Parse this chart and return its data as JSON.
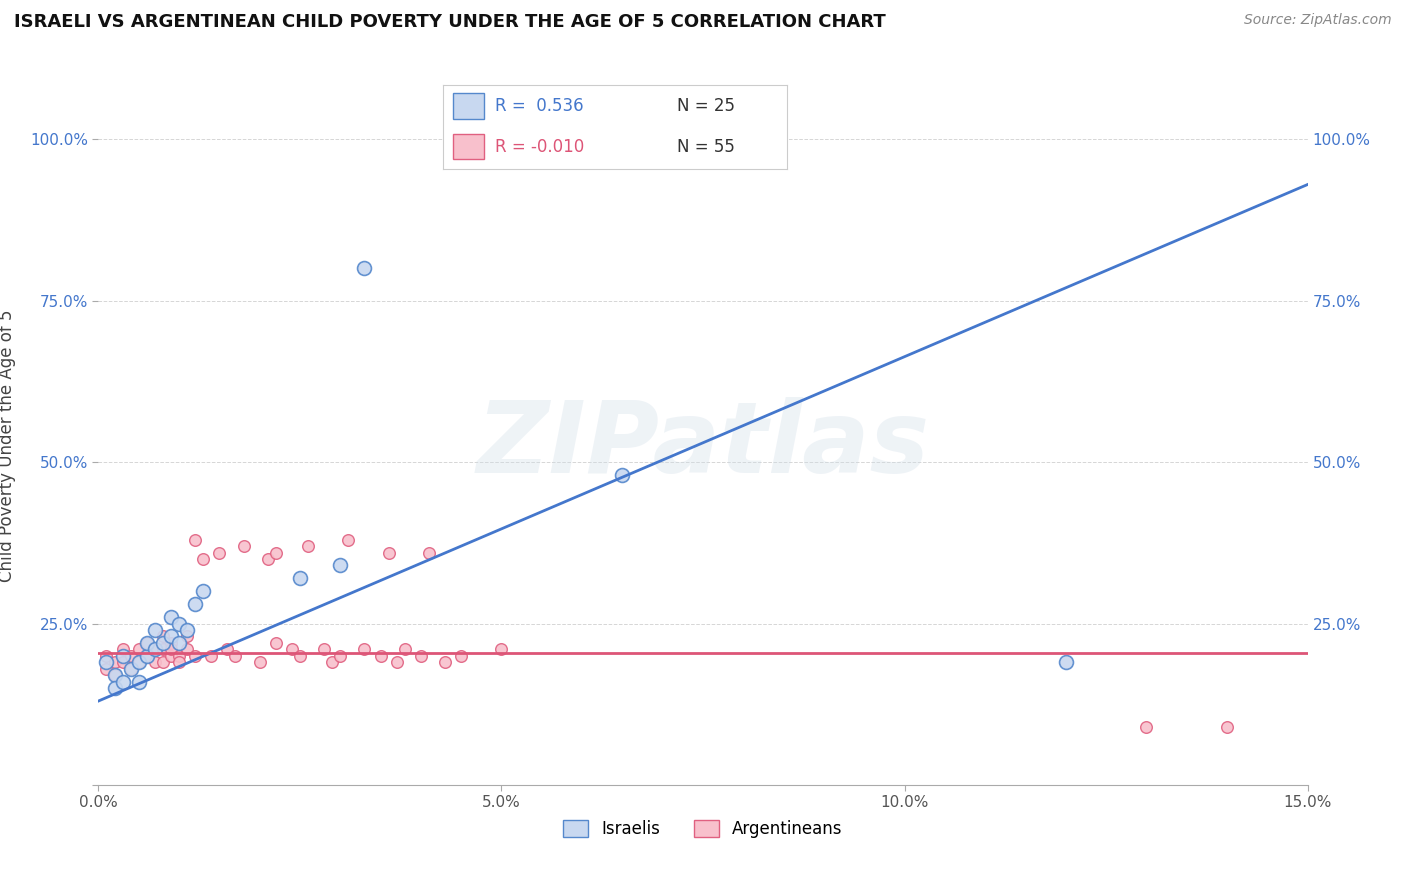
{
  "title": "ISRAELI VS ARGENTINEAN CHILD POVERTY UNDER THE AGE OF 5 CORRELATION CHART",
  "source": "Source: ZipAtlas.com",
  "ylabel": "Child Poverty Under the Age of 5",
  "xlim": [
    0.0,
    0.15
  ],
  "ylim": [
    0.0,
    1.05
  ],
  "x_ticks": [
    0.0,
    0.05,
    0.1,
    0.15
  ],
  "x_tick_labels": [
    "0.0%",
    "5.0%",
    "10.0%",
    "15.0%"
  ],
  "y_ticks": [
    0.0,
    0.25,
    0.5,
    0.75,
    1.0
  ],
  "y_tick_labels": [
    "",
    "25.0%",
    "50.0%",
    "75.0%",
    "100.0%"
  ],
  "legend_R1": "R =  0.536",
  "legend_N1": "N = 25",
  "legend_R2": "R = -0.010",
  "legend_N2": "N = 55",
  "israeli_fill_color": "#c8d8f0",
  "israeli_edge_color": "#5588cc",
  "argentinean_fill_color": "#f8c0cc",
  "argentinean_edge_color": "#e06080",
  "israeli_line_color": "#4477cc",
  "argentinean_line_color": "#dd5577",
  "watermark": "ZIPatlas",
  "israelis_x": [
    0.001,
    0.002,
    0.002,
    0.003,
    0.003,
    0.004,
    0.005,
    0.005,
    0.006,
    0.006,
    0.007,
    0.007,
    0.008,
    0.009,
    0.009,
    0.01,
    0.01,
    0.011,
    0.012,
    0.013,
    0.025,
    0.03,
    0.033,
    0.065,
    0.12
  ],
  "israelis_y": [
    0.19,
    0.17,
    0.15,
    0.16,
    0.2,
    0.18,
    0.19,
    0.16,
    0.2,
    0.22,
    0.21,
    0.24,
    0.22,
    0.23,
    0.26,
    0.25,
    0.22,
    0.24,
    0.28,
    0.3,
    0.32,
    0.34,
    0.8,
    0.48,
    0.19
  ],
  "argentineans_x": [
    0.001,
    0.001,
    0.002,
    0.002,
    0.003,
    0.003,
    0.004,
    0.004,
    0.005,
    0.005,
    0.006,
    0.006,
    0.007,
    0.007,
    0.008,
    0.008,
    0.008,
    0.009,
    0.009,
    0.009,
    0.01,
    0.01,
    0.011,
    0.011,
    0.012,
    0.012,
    0.013,
    0.014,
    0.015,
    0.016,
    0.017,
    0.018,
    0.02,
    0.021,
    0.022,
    0.022,
    0.024,
    0.025,
    0.026,
    0.028,
    0.029,
    0.03,
    0.031,
    0.033,
    0.035,
    0.036,
    0.037,
    0.038,
    0.04,
    0.041,
    0.043,
    0.045,
    0.05,
    0.13,
    0.14
  ],
  "argentineans_y": [
    0.2,
    0.18,
    0.19,
    0.17,
    0.21,
    0.19,
    0.2,
    0.18,
    0.21,
    0.19,
    0.22,
    0.2,
    0.21,
    0.19,
    0.21,
    0.23,
    0.19,
    0.22,
    0.2,
    0.21,
    0.2,
    0.19,
    0.21,
    0.23,
    0.38,
    0.2,
    0.35,
    0.2,
    0.36,
    0.21,
    0.2,
    0.37,
    0.19,
    0.35,
    0.22,
    0.36,
    0.21,
    0.2,
    0.37,
    0.21,
    0.19,
    0.2,
    0.38,
    0.21,
    0.2,
    0.36,
    0.19,
    0.21,
    0.2,
    0.36,
    0.19,
    0.2,
    0.21,
    0.09,
    0.09
  ],
  "marker_size_israeli": 100,
  "marker_size_argentinean": 70,
  "isr_line_x0": 0.0,
  "isr_line_y0": 0.13,
  "isr_line_x1": 0.15,
  "isr_line_y1": 0.93,
  "arg_line_x0": 0.0,
  "arg_line_y0": 0.205,
  "arg_line_x1": 0.15,
  "arg_line_y1": 0.205
}
